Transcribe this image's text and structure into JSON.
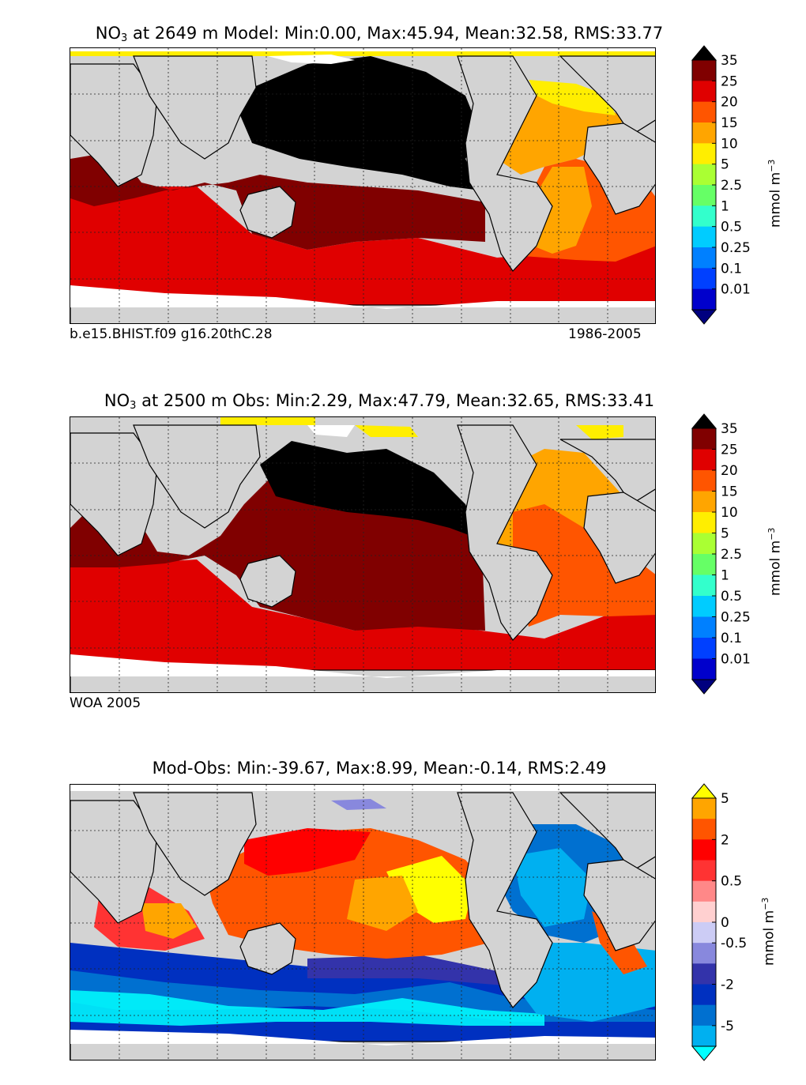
{
  "chart_data": [
    {
      "type": "heatmap",
      "title_prefix": "NO",
      "title_sub": "3",
      "title_rest": " at 2649 m Model: Min:0.00, Max:45.94, Mean:32.58, RMS:33.77",
      "stats": {
        "min": 0.0,
        "max": 45.94,
        "mean": 32.58,
        "rms": 33.77
      },
      "left_caption": "b.e15.BHIST.f09 g16.20thC.28",
      "right_caption": "1986-2005",
      "colorbar": {
        "unit_base": "mmol m",
        "unit_exp": "−3",
        "extend": "both",
        "ticks": [
          "0.01",
          "0.1",
          "0.25",
          "0.5",
          "1",
          "2.5",
          "5",
          "10",
          "15",
          "20",
          "25",
          "35"
        ],
        "colors": [
          "#00007f",
          "#0000cc",
          "#0040ff",
          "#0080ff",
          "#00ccff",
          "#33ffcc",
          "#66ff66",
          "#aaff33",
          "#ffee00",
          "#ffa500",
          "#ff5500",
          "#e00000",
          "#800000",
          "#000000"
        ]
      }
    },
    {
      "type": "heatmap",
      "title_prefix": "NO",
      "title_sub": "3",
      "title_rest": " at 2500 m Obs: Min:2.29, Max:47.79, Mean:32.65, RMS:33.41",
      "stats": {
        "min": 2.29,
        "max": 47.79,
        "mean": 32.65,
        "rms": 33.41
      },
      "left_caption": "WOA 2005",
      "right_caption": "",
      "colorbar": {
        "unit_base": "mmol m",
        "unit_exp": "−3",
        "extend": "both",
        "ticks": [
          "0.01",
          "0.1",
          "0.25",
          "0.5",
          "1",
          "2.5",
          "5",
          "10",
          "15",
          "20",
          "25",
          "35"
        ],
        "colors": [
          "#00007f",
          "#0000cc",
          "#0040ff",
          "#0080ff",
          "#00ccff",
          "#33ffcc",
          "#66ff66",
          "#aaff33",
          "#ffee00",
          "#ffa500",
          "#ff5500",
          "#e00000",
          "#800000",
          "#000000"
        ]
      }
    },
    {
      "type": "heatmap",
      "title_prefix": "",
      "title_sub": "",
      "title_rest": "Mod-Obs: Min:-39.67, Max:8.99, Mean:-0.14, RMS:2.49",
      "stats": {
        "min": -39.67,
        "max": 8.99,
        "mean": -0.14,
        "rms": 2.49
      },
      "left_caption": "",
      "right_caption": "",
      "colorbar": {
        "unit_base": "mmol m",
        "unit_exp": "−3",
        "extend": "both",
        "ticks": [
          "-5",
          "-2",
          "-0.5",
          "0",
          "0.5",
          "2",
          "5"
        ],
        "tick_slots": [
          1,
          3,
          5,
          6,
          8,
          10,
          12
        ],
        "colors": [
          "#00ffff",
          "#00b0f0",
          "#0070d0",
          "#0030c0",
          "#3333aa",
          "#8888dd",
          "#ccccf5",
          "#ffd0d0",
          "#ff8888",
          "#ff3333",
          "#ff0000",
          "#ff5500",
          "#ffa500",
          "#ffff00"
        ]
      }
    }
  ]
}
